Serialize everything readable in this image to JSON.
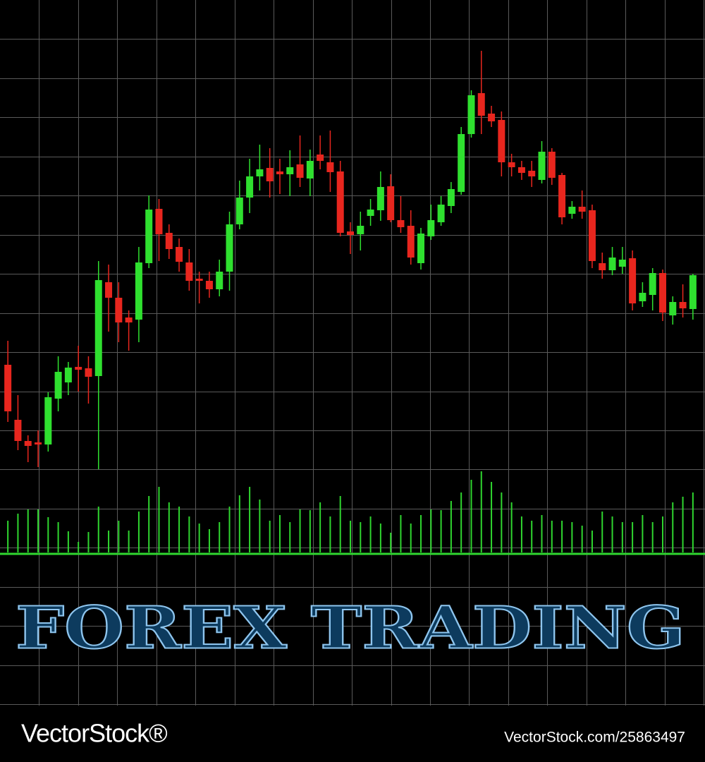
{
  "chart_data": {
    "type": "candlestick",
    "title": "FOREX TRADING",
    "open": [
      148,
      70,
      40,
      38,
      35,
      100,
      123,
      145,
      143,
      132,
      265,
      243,
      215,
      212,
      292,
      369,
      335,
      315,
      293,
      270,
      267,
      255,
      280,
      347,
      385,
      415,
      427,
      422,
      418,
      432,
      412,
      446,
      435,
      422,
      337,
      333,
      359,
      367,
      401,
      353,
      345,
      292,
      330,
      350,
      373,
      393,
      475,
      533,
      504,
      495,
      435,
      428,
      423,
      410,
      450,
      417,
      362,
      372,
      367,
      292,
      282,
      287,
      299,
      238,
      247,
      278,
      218,
      237,
      227
    ],
    "high": [
      182,
      105,
      48,
      55,
      109,
      160,
      152,
      175,
      160,
      295,
      290,
      265,
      225,
      315,
      388,
      383,
      347,
      327,
      312,
      280,
      280,
      297,
      365,
      409,
      440,
      460,
      455,
      440,
      452,
      473,
      453,
      473,
      480,
      437,
      350,
      365,
      383,
      422,
      418,
      387,
      367,
      342,
      375,
      387,
      407,
      485,
      537,
      593,
      515,
      507,
      447,
      437,
      437,
      465,
      455,
      420,
      380,
      395,
      375,
      307,
      315,
      315,
      310,
      265,
      285,
      283,
      245,
      262,
      277
    ],
    "low": [
      67,
      27,
      10,
      3,
      25,
      82,
      105,
      110,
      93,
      0,
      195,
      180,
      168,
      180,
      285,
      295,
      298,
      280,
      253,
      235,
      243,
      245,
      253,
      340,
      363,
      395,
      385,
      390,
      387,
      400,
      387,
      425,
      393,
      330,
      305,
      310,
      345,
      352,
      350,
      335,
      290,
      283,
      325,
      345,
      363,
      389,
      470,
      475,
      485,
      415,
      415,
      410,
      400,
      405,
      403,
      347,
      355,
      355,
      285,
      270,
      275,
      277,
      225,
      230,
      225,
      210,
      205,
      215,
      212
    ],
    "close": [
      82,
      40,
      33,
      35,
      102,
      138,
      144,
      141,
      131,
      268,
      243,
      208,
      208,
      293,
      368,
      333,
      312,
      294,
      267,
      267,
      255,
      280,
      347,
      385,
      415,
      425,
      408,
      418,
      428,
      413,
      437,
      437,
      421,
      335,
      332,
      345,
      368,
      400,
      353,
      343,
      300,
      334,
      353,
      375,
      397,
      475,
      530,
      501,
      493,
      435,
      428,
      420,
      415,
      450,
      413,
      357,
      372,
      365,
      295,
      282,
      300,
      297,
      235,
      250,
      278,
      222,
      237,
      228,
      275
    ],
    "volume": [
      45,
      55,
      61,
      61,
      50,
      43,
      30,
      15,
      29,
      65,
      31,
      45,
      31,
      58,
      80,
      93,
      71,
      65,
      51,
      41,
      33,
      43,
      65,
      81,
      93,
      75,
      45,
      53,
      43,
      61,
      60,
      71,
      51,
      80,
      45,
      43,
      51,
      41,
      28,
      53,
      41,
      53,
      61,
      60,
      73,
      85,
      103,
      115,
      100,
      85,
      71,
      51,
      45,
      53,
      45,
      45,
      43,
      38,
      31,
      58,
      51,
      43,
      43,
      53,
      43,
      51,
      71,
      79,
      85
    ],
    "up_color": "#2fe02f",
    "down_color": "#e8261e",
    "volume_color": "#2fd62f",
    "ylim": [
      0,
      665
    ],
    "volume_ylim": [
      0,
      120
    ]
  },
  "watermark": {
    "brand": "VectorStock®",
    "url": "VectorStock.com/25863497"
  }
}
